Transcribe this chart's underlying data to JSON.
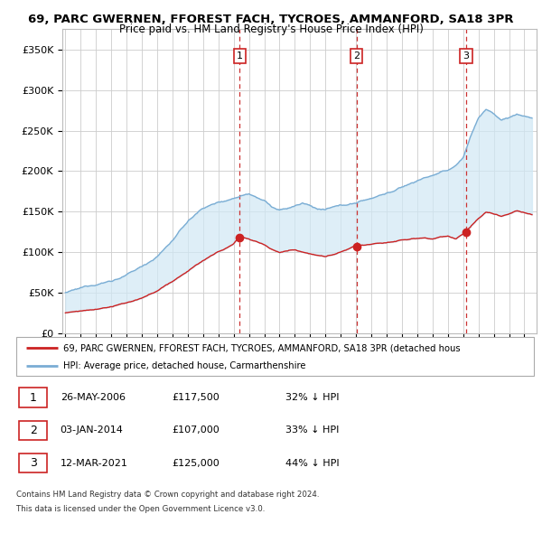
{
  "title1": "69, PARC GWERNEN, FFOREST FACH, TYCROES, AMMANFORD, SA18 3PR",
  "title2": "Price paid vs. HM Land Registry's House Price Index (HPI)",
  "ylabel_ticks": [
    "£0",
    "£50K",
    "£100K",
    "£150K",
    "£200K",
    "£250K",
    "£300K",
    "£350K"
  ],
  "ytick_values": [
    0,
    50000,
    100000,
    150000,
    200000,
    250000,
    300000,
    350000
  ],
  "ylim": [
    0,
    375000
  ],
  "xlim_start": 1994.8,
  "xlim_end": 2025.8,
  "hpi_color": "#7aadd4",
  "hpi_fill_color": "#d0e8f5",
  "price_color": "#cc2222",
  "vline_color": "#cc3333",
  "grid_color": "#cccccc",
  "sale_dates": [
    2006.4,
    2014.02,
    2021.19
  ],
  "sale_prices": [
    117500,
    107000,
    125000
  ],
  "sale_labels": [
    "1",
    "2",
    "3"
  ],
  "legend1": "69, PARC GWERNEN, FFOREST FACH, TYCROES, AMMANFORD, SA18 3PR (detached hous",
  "legend2": "HPI: Average price, detached house, Carmarthenshire",
  "table_data": [
    [
      "1",
      "26-MAY-2006",
      "£117,500",
      "32% ↓ HPI"
    ],
    [
      "2",
      "03-JAN-2014",
      "£107,000",
      "33% ↓ HPI"
    ],
    [
      "3",
      "12-MAR-2021",
      "£125,000",
      "44% ↓ HPI"
    ]
  ],
  "footnote1": "Contains HM Land Registry data © Crown copyright and database right 2024.",
  "footnote2": "This data is licensed under the Open Government Licence v3.0."
}
